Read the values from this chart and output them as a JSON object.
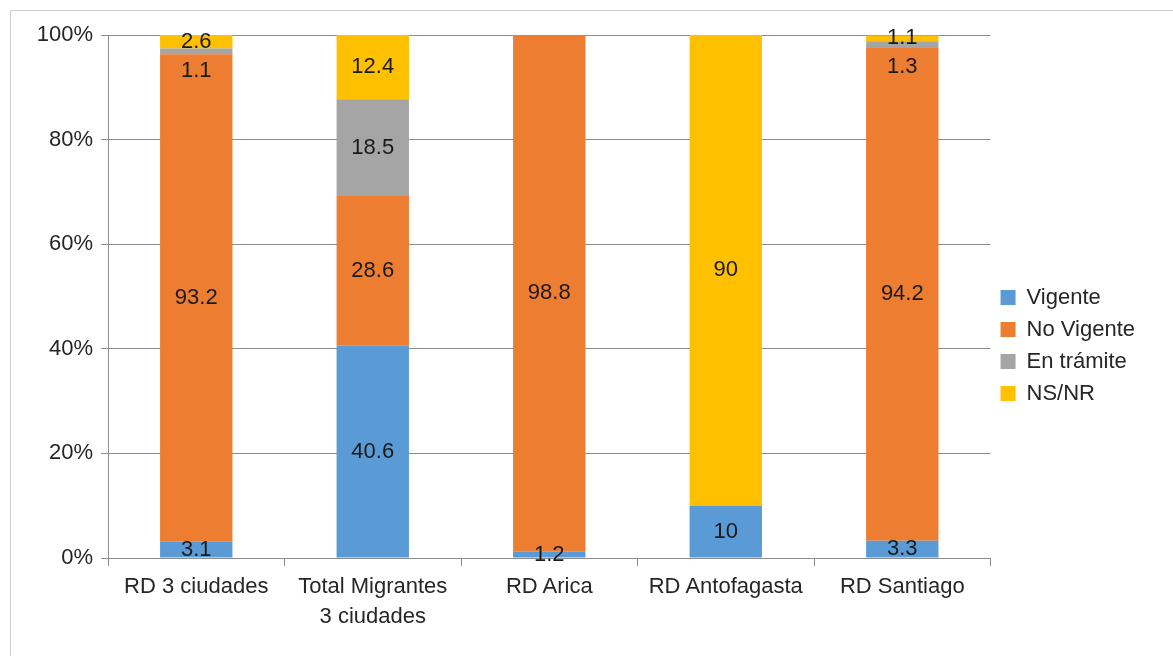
{
  "chart_data": {
    "type": "bar",
    "stacked": true,
    "categories": [
      "RD 3 ciudades",
      "Total Migrantes 3 ciudades",
      "RD Arica",
      "RD Antofagasta",
      "RD Santiago"
    ],
    "series": [
      {
        "name": "Vigente",
        "color": "#5b9bd5",
        "values": [
          3.1,
          40.6,
          1.2,
          10,
          3.3
        ]
      },
      {
        "name": "No Vigente",
        "color": "#ed7d31",
        "values": [
          93.2,
          28.6,
          98.8,
          null,
          94.2
        ]
      },
      {
        "name": "En trámite",
        "color": "#a5a5a5",
        "values": [
          1.1,
          18.5,
          null,
          null,
          1.3
        ]
      },
      {
        "name": "NS/NR",
        "color": "#ffc000",
        "values": [
          2.6,
          12.4,
          null,
          90,
          1.1
        ]
      }
    ],
    "ylim": [
      0,
      100
    ],
    "yticks": [
      {
        "value": 0,
        "label": "0%"
      },
      {
        "value": 20,
        "label": "20%"
      },
      {
        "value": 40,
        "label": "40%"
      },
      {
        "value": 60,
        "label": "60%"
      },
      {
        "value": 80,
        "label": "80%"
      },
      {
        "value": 100,
        "label": "100%"
      }
    ],
    "grid": "y",
    "legend": "right",
    "data_labels": true
  }
}
